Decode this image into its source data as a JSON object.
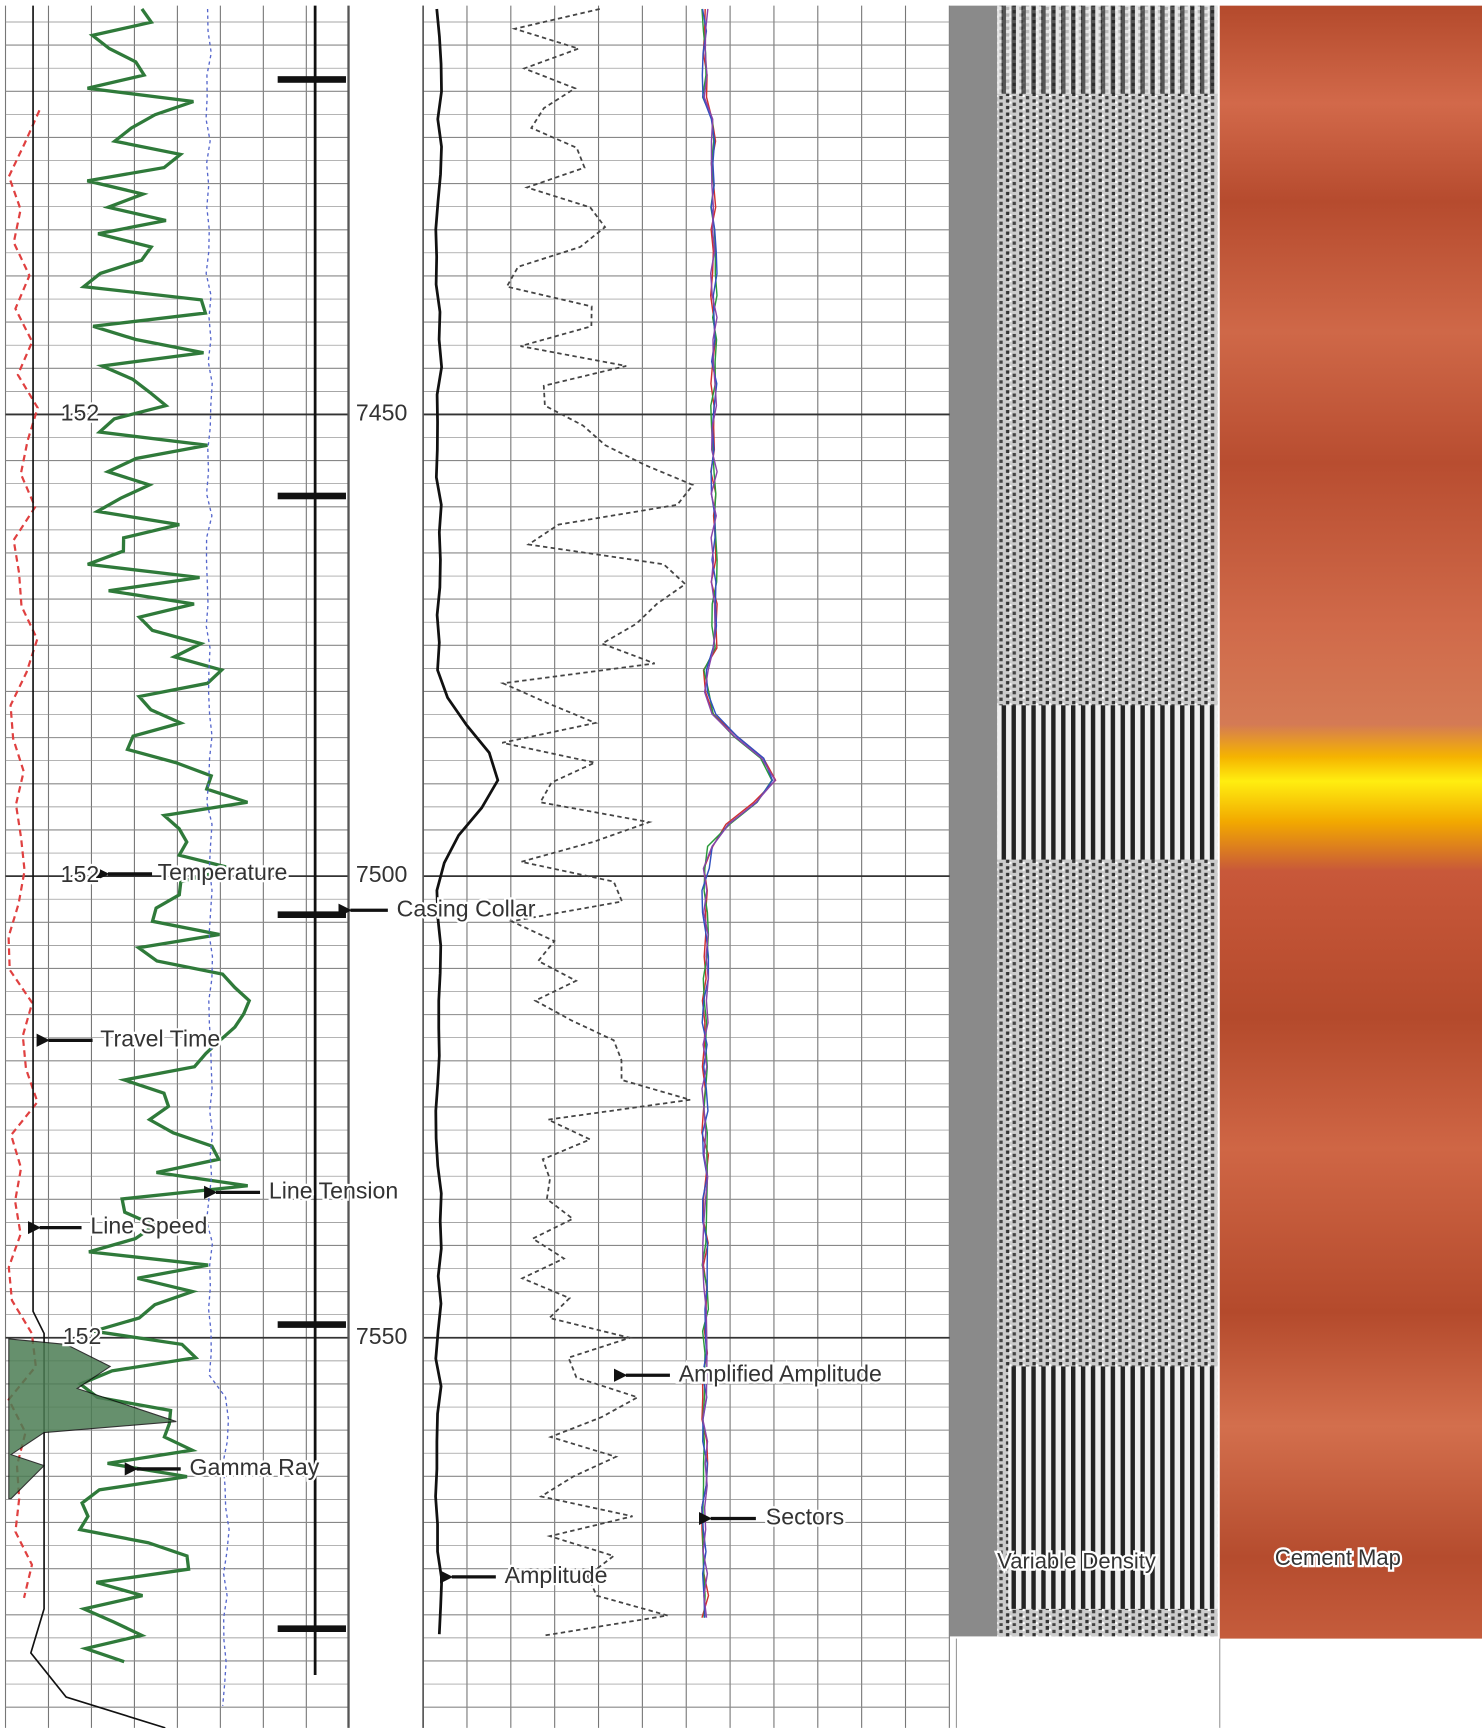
{
  "depth_labels": [
    7450,
    7500,
    7550
  ],
  "track_values": [
    152,
    152,
    152
  ],
  "annotations": [
    "Temperature",
    "Casing Collar",
    "Travel Time",
    "Line Tension",
    "Line Speed",
    "Gamma Ray",
    "Amplified Amplitude",
    "Sectors",
    "Amplitude",
    "Variable Density",
    "Cement Map"
  ]
}
